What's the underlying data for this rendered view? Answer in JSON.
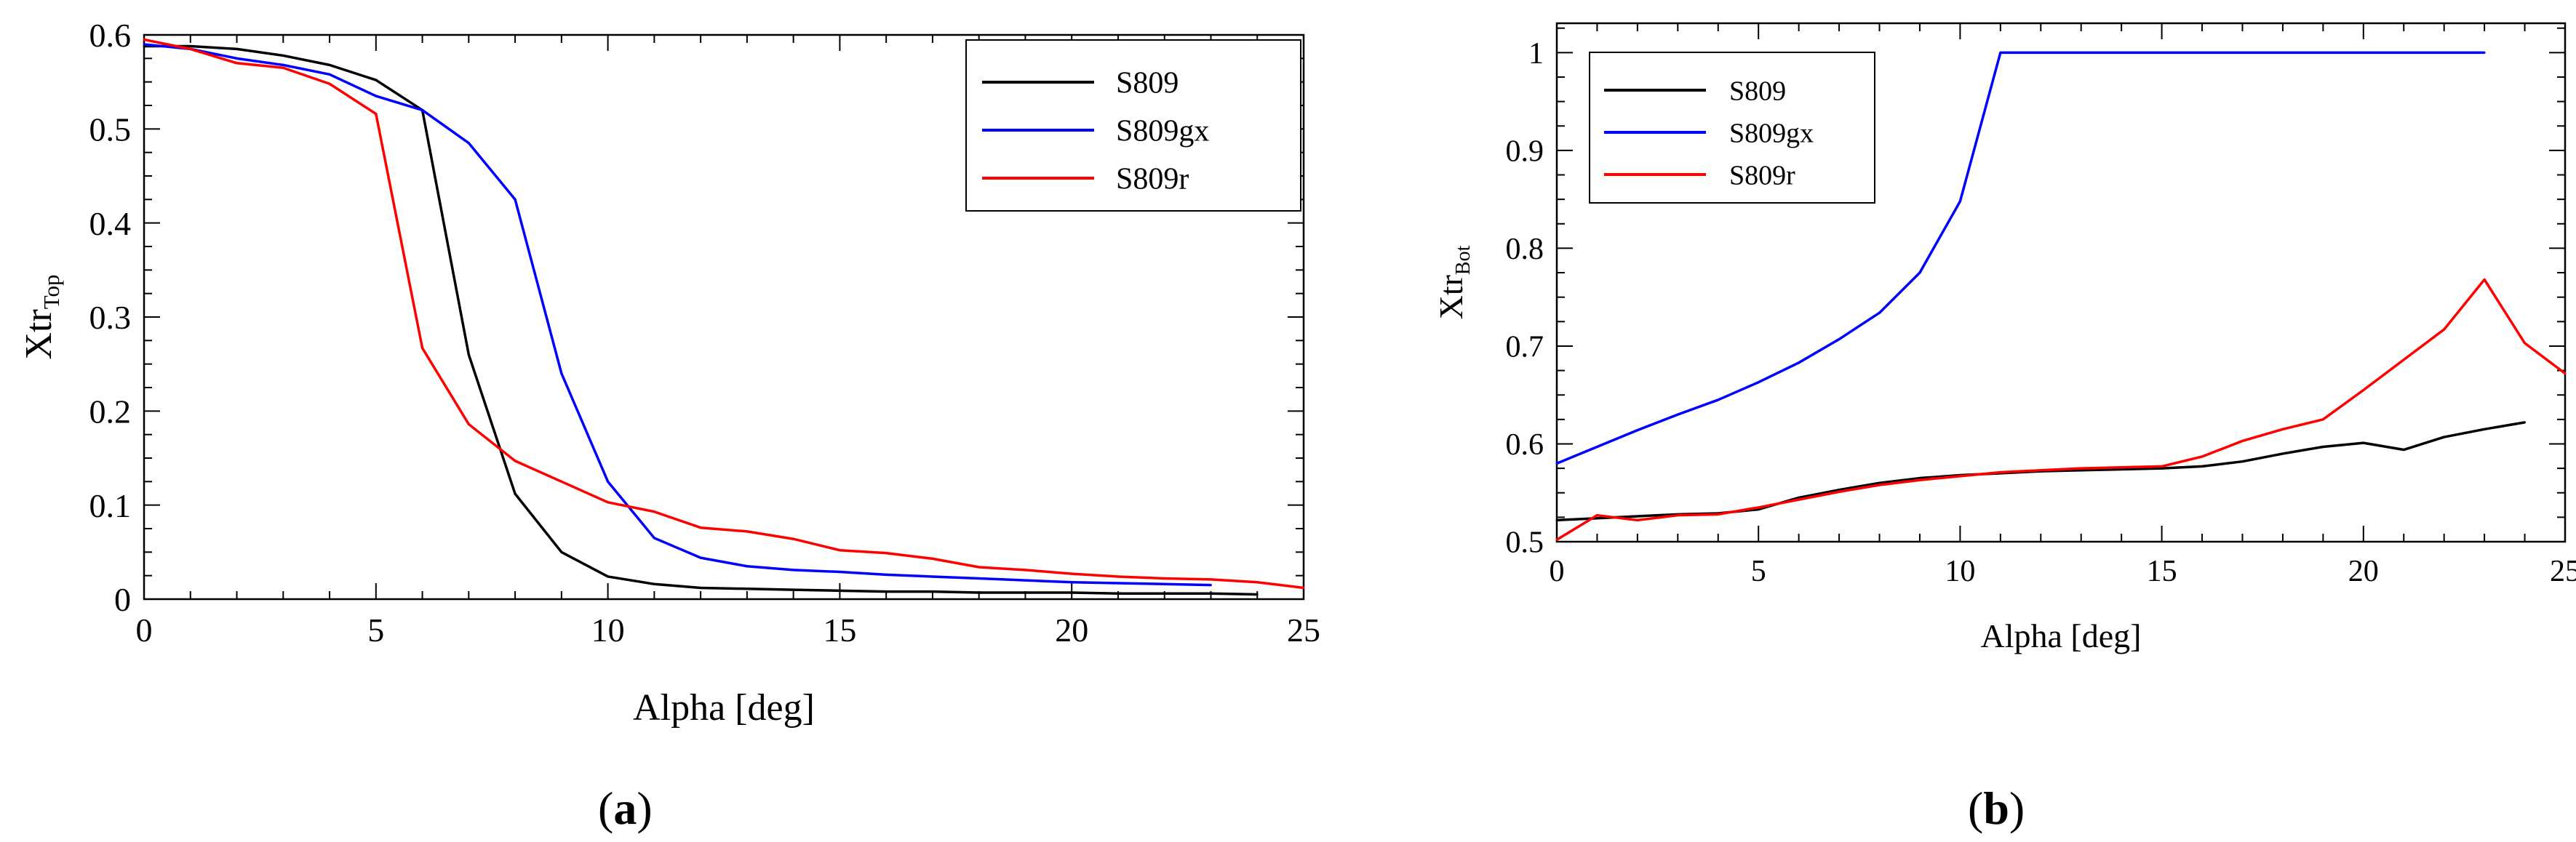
{
  "chart_data": [
    {
      "id": "a",
      "type": "line",
      "caption_letter": "a",
      "xlabel": "Alpha [deg]",
      "ylabel_main": "Xtr",
      "ylabel_sub": "Top",
      "xlim": [
        0,
        25
      ],
      "ylim": [
        0,
        0.6
      ],
      "xticks": [
        0,
        5,
        10,
        15,
        20,
        25
      ],
      "yticks": [
        0,
        0.1,
        0.2,
        0.3,
        0.4,
        0.5,
        0.6
      ],
      "ytick_labels": [
        "0",
        "0.1",
        "0.2",
        "0.3",
        "0.4",
        "0.5",
        "0.6"
      ],
      "legend_position": "top-right",
      "series": [
        {
          "name": "S809",
          "color": "#000000",
          "x": [
            0,
            1,
            2,
            3,
            4,
            5,
            6,
            7,
            8,
            9,
            10,
            11,
            12,
            13,
            14,
            15,
            16,
            17,
            18,
            19,
            20,
            21,
            22,
            23,
            24
          ],
          "y": [
            0.588,
            0.588,
            0.585,
            0.578,
            0.568,
            0.552,
            0.52,
            0.26,
            0.112,
            0.05,
            0.024,
            0.016,
            0.012,
            0.011,
            0.01,
            0.009,
            0.008,
            0.008,
            0.007,
            0.007,
            0.007,
            0.006,
            0.006,
            0.006,
            0.005
          ]
        },
        {
          "name": "S809gx",
          "color": "#0000ff",
          "x": [
            0,
            1,
            2,
            3,
            4,
            5,
            6,
            7,
            8,
            9,
            10,
            11,
            12,
            13,
            14,
            15,
            16,
            17,
            18,
            19,
            20,
            21,
            22,
            23
          ],
          "y": [
            0.59,
            0.585,
            0.575,
            0.568,
            0.558,
            0.535,
            0.52,
            0.485,
            0.425,
            0.24,
            0.125,
            0.065,
            0.044,
            0.035,
            0.031,
            0.029,
            0.026,
            0.024,
            0.022,
            0.02,
            0.018,
            0.017,
            0.016,
            0.015
          ]
        },
        {
          "name": "S809r",
          "color": "#ff0000",
          "x": [
            0,
            1,
            2,
            3,
            4,
            5,
            6,
            7,
            8,
            9,
            10,
            11,
            12,
            13,
            14,
            15,
            16,
            17,
            18,
            19,
            20,
            21,
            22,
            23,
            24,
            25
          ],
          "y": [
            0.595,
            0.585,
            0.57,
            0.565,
            0.548,
            0.516,
            0.267,
            0.186,
            0.147,
            0.125,
            0.103,
            0.093,
            0.076,
            0.072,
            0.064,
            0.052,
            0.049,
            0.043,
            0.034,
            0.031,
            0.027,
            0.024,
            0.022,
            0.021,
            0.018,
            0.012
          ]
        }
      ]
    },
    {
      "id": "b",
      "type": "line",
      "caption_letter": "b",
      "xlabel": "Alpha [deg]",
      "ylabel_main": "Xtr",
      "ylabel_sub": "Bot",
      "xlim": [
        0,
        25
      ],
      "ylim": [
        0.5,
        1.03
      ],
      "xticks": [
        0,
        5,
        10,
        15,
        20,
        25
      ],
      "yticks": [
        0.5,
        0.6,
        0.7,
        0.8,
        0.9,
        1.0
      ],
      "ytick_labels": [
        "0.5",
        "0.6",
        "0.7",
        "0.8",
        "0.9",
        "1"
      ],
      "legend_position": "top-left",
      "series": [
        {
          "name": "S809",
          "color": "#000000",
          "x": [
            0,
            1,
            2,
            3,
            4,
            5,
            6,
            7,
            8,
            9,
            10,
            11,
            12,
            13,
            14,
            15,
            16,
            17,
            18,
            19,
            20,
            21,
            22,
            23,
            24
          ],
          "y": [
            0.522,
            0.524,
            0.526,
            0.528,
            0.529,
            0.533,
            0.545,
            0.553,
            0.56,
            0.565,
            0.568,
            0.57,
            0.572,
            0.573,
            0.574,
            0.575,
            0.577,
            0.582,
            0.59,
            0.597,
            0.601,
            0.594,
            0.607,
            0.615,
            0.622
          ]
        },
        {
          "name": "S809gx",
          "color": "#0000ff",
          "x": [
            0,
            1,
            2,
            3,
            4,
            5,
            6,
            7,
            8,
            9,
            10,
            11,
            12,
            13,
            14,
            15,
            16,
            17,
            18,
            19,
            20,
            21,
            22,
            23
          ],
          "y": [
            0.58,
            0.597,
            0.614,
            0.63,
            0.645,
            0.663,
            0.683,
            0.707,
            0.734,
            0.775,
            0.848,
            1.0,
            1.0,
            1.0,
            1.0,
            1.0,
            1.0,
            1.0,
            1.0,
            1.0,
            1.0,
            1.0,
            1.0,
            1.0
          ]
        },
        {
          "name": "S809r",
          "color": "#ff0000",
          "x": [
            0,
            1,
            2,
            3,
            4,
            5,
            6,
            7,
            8,
            9,
            10,
            11,
            12,
            13,
            14,
            15,
            16,
            17,
            18,
            19,
            20,
            21,
            22,
            23,
            24,
            25
          ],
          "y": [
            0.502,
            0.527,
            0.522,
            0.527,
            0.528,
            0.535,
            0.543,
            0.551,
            0.558,
            0.563,
            0.567,
            0.571,
            0.573,
            0.575,
            0.576,
            0.577,
            0.587,
            0.603,
            0.615,
            0.625,
            0.655,
            0.686,
            0.717,
            0.768,
            0.703,
            0.672
          ]
        }
      ]
    }
  ]
}
